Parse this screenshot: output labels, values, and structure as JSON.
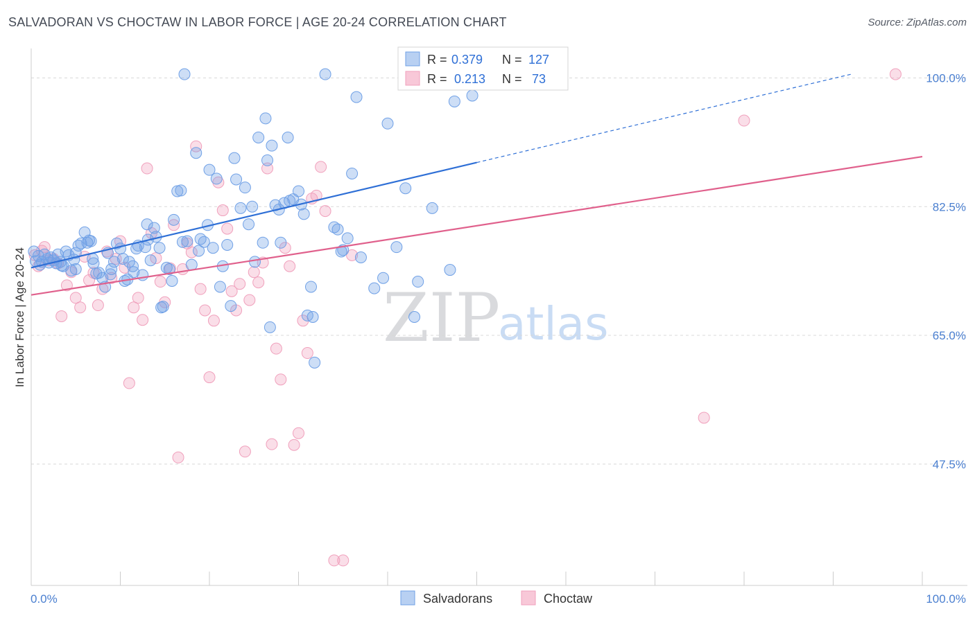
{
  "header": {
    "title": "SALVADORAN VS CHOCTAW IN LABOR FORCE | AGE 20-24 CORRELATION CHART",
    "source": "Source: ZipAtlas.com"
  },
  "watermark": {
    "zip": "ZIP",
    "atlas": "atlas"
  },
  "chart_data": {
    "type": "scatter",
    "ylabel": "In Labor Force | Age 20-24",
    "x_tick_labels": [
      "0.0%",
      "100.0%"
    ],
    "y_tick_labels": [
      "100.0%",
      "82.5%",
      "65.0%",
      "47.5%"
    ],
    "y_tick_values": [
      100.0,
      82.5,
      65.0,
      47.5
    ],
    "xlim": [
      0,
      100
    ],
    "ylim": [
      31,
      104
    ],
    "grid": true,
    "legend_position": "top-center",
    "stats": [
      {
        "r_label": "R =",
        "r": "0.379",
        "n_label": "N =",
        "n": "127"
      },
      {
        "r_label": "R =",
        "r": "0.213",
        "n_label": "N =",
        "n": " 73"
      }
    ],
    "colors": {
      "salvadorans": "#6fa0e6",
      "choctaw": "#f0a0bc",
      "salvadorans_line": "#2e6fd6",
      "choctaw_line": "#e0608c",
      "tick_label": "#4a7fd0",
      "grid": "#d8d8d8"
    },
    "series": [
      {
        "name": "Salvadorans",
        "trend": {
          "x0": 0,
          "y0": 74.2,
          "x1": 50,
          "y1": 88.5,
          "dashed_to_x": 92,
          "dashed_to_y": 100.5
        },
        "points": [
          [
            0.3,
            76.4
          ],
          [
            0.5,
            75.1
          ],
          [
            0.8,
            75.8
          ],
          [
            1.0,
            74.6
          ],
          [
            1.2,
            75.0
          ],
          [
            1.5,
            76.0
          ],
          [
            1.8,
            75.4
          ],
          [
            2.0,
            74.9
          ],
          [
            2.2,
            75.6
          ],
          [
            2.5,
            75.2
          ],
          [
            2.8,
            74.8
          ],
          [
            3.0,
            76.0
          ],
          [
            3.3,
            75.0
          ],
          [
            3.6,
            74.4
          ],
          [
            3.9,
            76.4
          ],
          [
            4.2,
            75.9
          ],
          [
            4.5,
            73.8
          ],
          [
            4.8,
            75.3
          ],
          [
            5.0,
            74.0
          ],
          [
            5.3,
            77.2
          ],
          [
            5.6,
            77.5
          ],
          [
            6.0,
            79.0
          ],
          [
            6.3,
            77.6
          ],
          [
            6.7,
            77.8
          ],
          [
            6.9,
            75.4
          ],
          [
            7.0,
            74.8
          ],
          [
            7.3,
            73.4
          ],
          [
            7.6,
            73.5
          ],
          [
            8.0,
            72.8
          ],
          [
            8.3,
            71.6
          ],
          [
            8.6,
            76.2
          ],
          [
            9.0,
            74.0
          ],
          [
            9.3,
            75.0
          ],
          [
            9.6,
            77.5
          ],
          [
            10.0,
            76.8
          ],
          [
            10.3,
            75.4
          ],
          [
            10.5,
            72.4
          ],
          [
            10.8,
            72.6
          ],
          [
            11.0,
            75.0
          ],
          [
            11.4,
            74.4
          ],
          [
            11.8,
            76.8
          ],
          [
            12.0,
            77.2
          ],
          [
            12.5,
            73.2
          ],
          [
            12.8,
            77.0
          ],
          [
            13.1,
            78.0
          ],
          [
            13.4,
            75.2
          ],
          [
            13.8,
            79.6
          ],
          [
            14.0,
            78.4
          ],
          [
            14.4,
            76.9
          ],
          [
            14.6,
            68.8
          ],
          [
            14.8,
            68.9
          ],
          [
            15.2,
            74.2
          ],
          [
            15.5,
            74.0
          ],
          [
            15.8,
            72.4
          ],
          [
            16.0,
            80.7
          ],
          [
            16.4,
            84.6
          ],
          [
            16.8,
            84.7
          ],
          [
            17.0,
            77.7
          ],
          [
            17.5,
            77.8
          ],
          [
            18.0,
            74.6
          ],
          [
            18.5,
            89.8
          ],
          [
            18.8,
            76.5
          ],
          [
            19.0,
            78.1
          ],
          [
            19.4,
            77.7
          ],
          [
            19.8,
            80.0
          ],
          [
            20.0,
            87.5
          ],
          [
            20.4,
            76.9
          ],
          [
            20.8,
            86.3
          ],
          [
            21.2,
            71.6
          ],
          [
            21.5,
            74.4
          ],
          [
            22.0,
            77.3
          ],
          [
            22.4,
            69.0
          ],
          [
            22.8,
            89.1
          ],
          [
            23.0,
            86.2
          ],
          [
            23.5,
            82.3
          ],
          [
            24.0,
            85.1
          ],
          [
            24.4,
            80.1
          ],
          [
            24.8,
            82.5
          ],
          [
            25.1,
            75.0
          ],
          [
            25.5,
            91.9
          ],
          [
            26.0,
            77.6
          ],
          [
            26.3,
            94.5
          ],
          [
            26.5,
            88.8
          ],
          [
            26.8,
            66.1
          ],
          [
            27.0,
            90.8
          ],
          [
            27.4,
            82.7
          ],
          [
            27.8,
            82.1
          ],
          [
            28.0,
            77.6
          ],
          [
            28.4,
            83.0
          ],
          [
            28.8,
            91.9
          ],
          [
            29.0,
            83.3
          ],
          [
            29.4,
            83.5
          ],
          [
            30.0,
            84.6
          ],
          [
            30.3,
            82.8
          ],
          [
            30.6,
            81.5
          ],
          [
            31.0,
            67.7
          ],
          [
            31.4,
            71.6
          ],
          [
            31.6,
            67.5
          ],
          [
            31.8,
            61.3
          ],
          [
            33.0,
            100.5
          ],
          [
            34.0,
            79.7
          ],
          [
            34.4,
            79.4
          ],
          [
            34.8,
            76.4
          ],
          [
            35.0,
            76.6
          ],
          [
            35.5,
            78.2
          ],
          [
            36.0,
            87.0
          ],
          [
            36.5,
            97.4
          ],
          [
            37.0,
            75.6
          ],
          [
            38.5,
            71.4
          ],
          [
            39.5,
            72.8
          ],
          [
            40.0,
            93.8
          ],
          [
            41.0,
            77.0
          ],
          [
            42.0,
            85.0
          ],
          [
            43.0,
            67.5
          ],
          [
            43.4,
            72.3
          ],
          [
            45.0,
            82.3
          ],
          [
            47.0,
            73.9
          ],
          [
            47.5,
            96.8
          ],
          [
            49.0,
            100.5
          ],
          [
            49.5,
            97.6
          ],
          [
            11.5,
            73.6
          ],
          [
            13.0,
            80.1
          ],
          [
            8.9,
            73.3
          ],
          [
            6.5,
            77.9
          ],
          [
            5.0,
            76.2
          ],
          [
            3.4,
            74.5
          ],
          [
            17.2,
            100.5
          ]
        ]
      },
      {
        "name": "Choctaw",
        "trend": {
          "x0": 0,
          "y0": 70.5,
          "x1": 100,
          "y1": 89.3
        },
        "points": [
          [
            0.4,
            75.9
          ],
          [
            0.8,
            74.4
          ],
          [
            1.2,
            76.5
          ],
          [
            1.5,
            77.0
          ],
          [
            2.0,
            75.2
          ],
          [
            2.5,
            75.4
          ],
          [
            3.0,
            74.8
          ],
          [
            3.4,
            67.6
          ],
          [
            4.0,
            71.8
          ],
          [
            4.5,
            73.6
          ],
          [
            5.0,
            70.1
          ],
          [
            5.5,
            68.8
          ],
          [
            6.0,
            75.7
          ],
          [
            6.5,
            72.5
          ],
          [
            7.0,
            73.5
          ],
          [
            7.5,
            69.1
          ],
          [
            8.0,
            71.3
          ],
          [
            8.5,
            76.4
          ],
          [
            9.0,
            72.8
          ],
          [
            9.5,
            75.4
          ],
          [
            10.0,
            77.8
          ],
          [
            10.5,
            74.2
          ],
          [
            11.0,
            58.5
          ],
          [
            11.5,
            68.8
          ],
          [
            12.0,
            70.1
          ],
          [
            12.5,
            67.1
          ],
          [
            13.0,
            87.7
          ],
          [
            13.5,
            78.9
          ],
          [
            14.0,
            75.5
          ],
          [
            14.5,
            72.3
          ],
          [
            15.0,
            69.5
          ],
          [
            15.6,
            74.1
          ],
          [
            16.0,
            80.0
          ],
          [
            16.5,
            48.4
          ],
          [
            17.0,
            74.0
          ],
          [
            17.5,
            77.5
          ],
          [
            18.0,
            76.3
          ],
          [
            18.5,
            90.7
          ],
          [
            19.0,
            71.3
          ],
          [
            19.5,
            68.4
          ],
          [
            20.0,
            59.3
          ],
          [
            20.5,
            67.0
          ],
          [
            21.0,
            85.8
          ],
          [
            21.5,
            82.0
          ],
          [
            22.0,
            79.5
          ],
          [
            22.5,
            71.0
          ],
          [
            23.0,
            68.4
          ],
          [
            23.4,
            72.0
          ],
          [
            24.0,
            49.2
          ],
          [
            24.5,
            69.8
          ],
          [
            25.0,
            73.6
          ],
          [
            25.5,
            72.2
          ],
          [
            26.0,
            74.9
          ],
          [
            26.5,
            87.7
          ],
          [
            27.0,
            50.2
          ],
          [
            27.5,
            63.2
          ],
          [
            28.0,
            59.0
          ],
          [
            28.5,
            76.9
          ],
          [
            29.0,
            74.4
          ],
          [
            29.5,
            50.1
          ],
          [
            30.0,
            51.7
          ],
          [
            30.5,
            67.0
          ],
          [
            31.0,
            62.6
          ],
          [
            31.5,
            83.6
          ],
          [
            32.0,
            84.0
          ],
          [
            32.5,
            87.9
          ],
          [
            33.0,
            81.9
          ],
          [
            34.0,
            34.4
          ],
          [
            35.0,
            34.4
          ],
          [
            36.0,
            75.9
          ],
          [
            75.5,
            53.8
          ],
          [
            80.0,
            94.2
          ],
          [
            97.0,
            100.5
          ]
        ]
      }
    ]
  },
  "legend": {
    "items": [
      {
        "label": "Salvadorans"
      },
      {
        "label": "Choctaw"
      }
    ]
  }
}
